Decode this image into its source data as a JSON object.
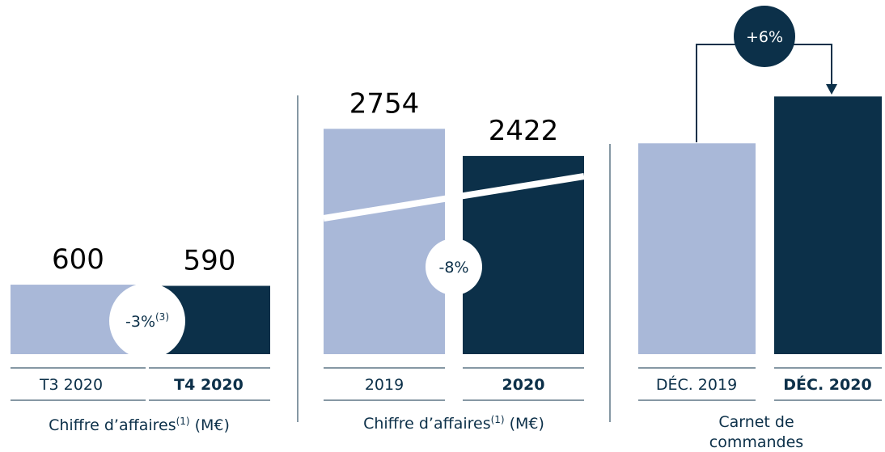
{
  "chart_data": [
    {
      "type": "bar",
      "categories": [
        "T3 2020",
        "T4 2020"
      ],
      "values": [
        600,
        590
      ],
      "colors": [
        "#a9b8d8",
        "#0c3049"
      ],
      "ylim": [
        0,
        2360
      ],
      "data_labels": true,
      "change": "-3%",
      "change_note": "(3)",
      "axis_label": {
        "text": "Chiffre d’affaires",
        "note": "(1)",
        "unit": "(M€)"
      }
    },
    {
      "type": "bar",
      "categories": [
        "2019",
        "2020"
      ],
      "values": [
        2754,
        2422
      ],
      "colors": [
        "#a9b8d8",
        "#0c3049"
      ],
      "ylim": [
        0,
        3340
      ],
      "data_labels": true,
      "change": "-8%",
      "axis_label": {
        "text": "Chiffre d’affaires",
        "note": "(1)",
        "unit": "(M€)"
      }
    },
    {
      "type": "bar",
      "categories": [
        "DÉC. 2019",
        "DÉC. 2020"
      ],
      "values": [
        100,
        106
      ],
      "colors": [
        "#a9b8d8",
        "#0c3049"
      ],
      "ylim": [
        73,
        108
      ],
      "data_labels": false,
      "change": "+6%",
      "axis_label": [
        "Carnet de",
        "commandes"
      ]
    }
  ]
}
